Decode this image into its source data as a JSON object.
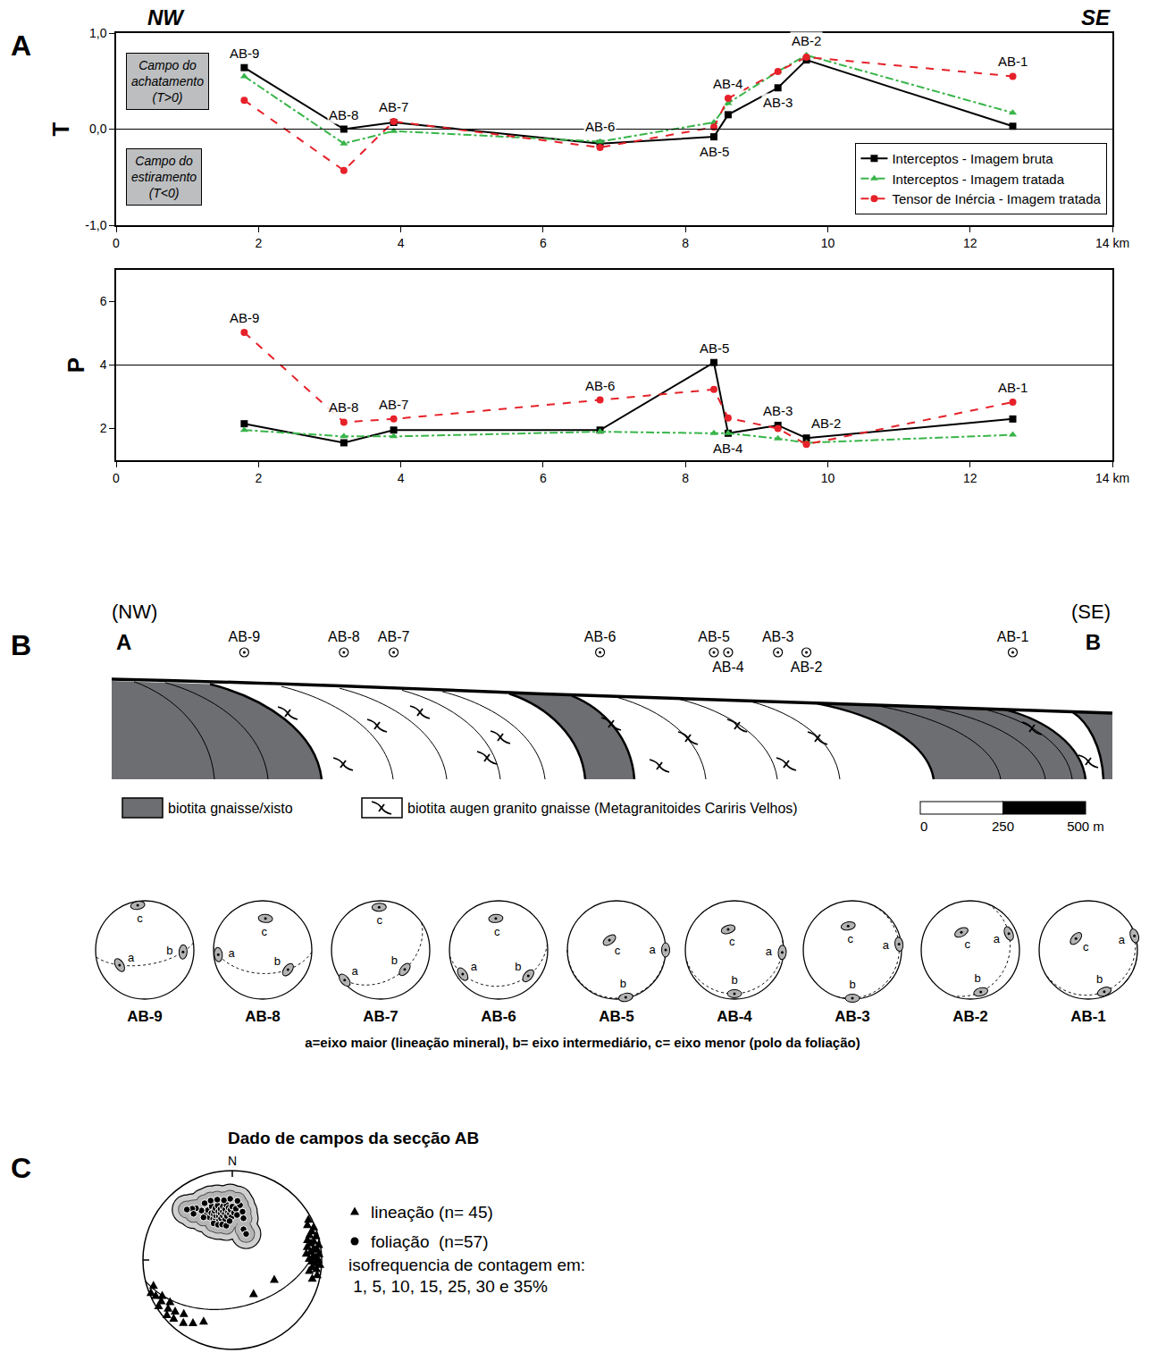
{
  "panel_labels": [
    "A",
    "B",
    "C"
  ],
  "chart_data": [
    {
      "type": "line",
      "y_label": "T",
      "direction_labels": [
        "NW",
        "SE"
      ],
      "x": [
        1.8,
        3.2,
        3.9,
        6.8,
        8.4,
        8.6,
        9.3,
        9.7,
        12.6
      ],
      "labels": [
        "AB-9",
        "AB-8",
        "AB-7",
        "AB-6",
        "AB-5",
        "AB-4",
        "AB-3",
        "AB-2",
        "AB-1"
      ],
      "xlim": [
        0,
        14
      ],
      "xticks": [
        0,
        2,
        4,
        6,
        8,
        10,
        12,
        {
          "value": 14,
          "label": "14 km"
        }
      ],
      "ylim": [
        -1,
        1
      ],
      "yticks": [
        {
          "value": -1,
          "label": "-1,0"
        },
        {
          "value": 0,
          "label": "0,0"
        },
        {
          "value": 1,
          "label": "1,0"
        }
      ],
      "hline": 0,
      "fields": {
        "positive": [
          "Campo do",
          "achatamento",
          "(T>0)"
        ],
        "negative": [
          "Campo do",
          "estiramento",
          "(T<0)"
        ]
      },
      "grid": false,
      "legend": "bottom right",
      "series": [
        {
          "name": "Interceptos - Imagem bruta",
          "color": "#000000",
          "marker": "square",
          "line_style": "solid",
          "values": [
            0.64,
            0.0,
            0.07,
            -0.15,
            -0.08,
            0.15,
            0.43,
            0.72,
            0.03
          ]
        },
        {
          "name": "Interceptos - Imagem tratada",
          "color": "#39b54a",
          "marker": "triangle-up",
          "line_style": "dashdot",
          "values": [
            0.55,
            -0.15,
            -0.02,
            -0.13,
            0.07,
            0.27,
            0.6,
            0.77,
            0.17
          ]
        },
        {
          "name": "Tensor de Inércia - Imagem tratada",
          "color": "#e62129",
          "marker": "circle",
          "line_style": "dash",
          "values": [
            0.3,
            -0.43,
            0.08,
            -0.19,
            0.02,
            0.32,
            0.6,
            0.75,
            0.55
          ]
        }
      ]
    },
    {
      "type": "line",
      "y_label": "P",
      "x": [
        1.8,
        3.2,
        3.9,
        6.8,
        8.4,
        8.6,
        9.3,
        9.7,
        12.6
      ],
      "labels": [
        "AB-9",
        "AB-8",
        "AB-7",
        "AB-6",
        "AB-5",
        "AB-4",
        "AB-3",
        "AB-2",
        "AB-1"
      ],
      "xlim": [
        0,
        14
      ],
      "xticks": [
        0,
        2,
        4,
        6,
        8,
        10,
        12,
        {
          "value": 14,
          "label": "14 km"
        }
      ],
      "ylim": [
        1,
        7
      ],
      "yticks": [
        2,
        4,
        6
      ],
      "hline": 4,
      "grid": false,
      "series": [
        {
          "name": "Interceptos - Imagem bruta",
          "color": "#000000",
          "marker": "square",
          "line_style": "solid",
          "values": [
            2.15,
            1.55,
            1.95,
            1.95,
            4.08,
            1.85,
            2.1,
            1.7,
            2.3
          ]
        },
        {
          "name": "Interceptos - Imagem tratada",
          "color": "#39b54a",
          "marker": "triangle-up",
          "line_style": "dashdot",
          "values": [
            1.95,
            1.75,
            1.75,
            1.9,
            1.85,
            1.85,
            1.68,
            1.55,
            1.8
          ]
        },
        {
          "name": "Tensor de Inércia - Imagem tratada",
          "color": "#e62129",
          "marker": "circle",
          "line_style": "dash",
          "values": [
            5.03,
            2.2,
            2.3,
            2.9,
            3.23,
            2.33,
            2.0,
            1.5,
            2.83
          ]
        }
      ]
    }
  ],
  "cross_section": {
    "directions": [
      "(NW)",
      "(SE)"
    ],
    "ends": [
      "A",
      "B"
    ],
    "samples": {
      "labels": [
        "AB-9",
        "AB-8",
        "AB-7",
        "AB-6",
        "AB-5",
        "AB-4",
        "AB-3",
        "AB-2",
        "AB-1"
      ],
      "x": [
        1.8,
        3.2,
        3.9,
        6.8,
        8.4,
        8.6,
        9.3,
        9.7,
        12.6
      ]
    },
    "units": [
      "biotita gnaisse/xisto",
      "biotita augen granito gnaisse (Metagranitoides Cariris Velhos)"
    ],
    "scale": {
      "ticks": [
        0,
        250,
        {
          "value": 500,
          "label": "500 m"
        }
      ]
    }
  },
  "stereonets": {
    "nets": [
      {
        "label": "AB-9",
        "axes": [
          {
            "name": "a",
            "trend": 239,
            "plunge": 40
          },
          {
            "name": "b",
            "trend": 93,
            "plunge": 23
          },
          {
            "name": "c",
            "trend": 351,
            "plunge": 9
          }
        ]
      },
      {
        "label": "AB-8",
        "axes": [
          {
            "name": "a",
            "trend": 264,
            "plunge": 10
          },
          {
            "name": "b",
            "trend": 128,
            "plunge": 35
          },
          {
            "name": "c",
            "trend": 5,
            "plunge": 36
          }
        ]
      },
      {
        "label": "AB-7",
        "axes": [
          {
            "name": "a",
            "trend": 230,
            "plunge": 5
          },
          {
            "name": "b",
            "trend": 129,
            "plunge": 37
          },
          {
            "name": "c",
            "trend": 358,
            "plunge": 14
          }
        ]
      },
      {
        "label": "AB-6",
        "axes": [
          {
            "name": "a",
            "trend": 236,
            "plunge": 13
          },
          {
            "name": "b",
            "trend": 131,
            "plunge": 21
          },
          {
            "name": "c",
            "trend": 355,
            "plunge": 36
          }
        ]
      },
      {
        "label": "AB-5",
        "axes": [
          {
            "name": "a",
            "trend": 90,
            "plunge": 0
          },
          {
            "name": "b",
            "trend": 169,
            "plunge": 2
          },
          {
            "name": "c",
            "trend": 324,
            "plunge": 70
          }
        ]
      },
      {
        "label": "AB-4",
        "axes": [
          {
            "name": "a",
            "trend": 93,
            "plunge": 3
          },
          {
            "name": "b",
            "trend": 180,
            "plunge": 12
          },
          {
            "name": "c",
            "trend": 343,
            "plunge": 54
          }
        ]
      },
      {
        "label": "AB-3",
        "axes": [
          {
            "name": "a",
            "trend": 83,
            "plunge": 5
          },
          {
            "name": "b",
            "trend": 180,
            "plunge": 2
          },
          {
            "name": "c",
            "trend": 350,
            "plunge": 49
          }
        ]
      },
      {
        "label": "AB-2",
        "axes": [
          {
            "name": "a",
            "trend": 67,
            "plunge": 16
          },
          {
            "name": "b",
            "trend": 166,
            "plunge": 13
          },
          {
            "name": "c",
            "trend": 333,
            "plunge": 57
          }
        ]
      },
      {
        "label": "AB-1",
        "axes": [
          {
            "name": "a",
            "trend": 73,
            "plunge": 2
          },
          {
            "name": "b",
            "trend": 159,
            "plunge": 10
          },
          {
            "name": "c",
            "trend": 313,
            "plunge": 62
          }
        ]
      }
    ],
    "caption": "a=eixo maior (lineação mineral), b= eixo intermediário, c= eixo menor (polo da foliação)"
  },
  "field_stereonet": {
    "title": "Dado de campos da secção AB",
    "north": "N",
    "lineation": {
      "label": "lineação (n= 45)",
      "points": [
        [
          62,
          4
        ],
        [
          65,
          8
        ],
        [
          68,
          2
        ],
        [
          70,
          6
        ],
        [
          72,
          10
        ],
        [
          74,
          3
        ],
        [
          75,
          14
        ],
        [
          77,
          7
        ],
        [
          78,
          11
        ],
        [
          80,
          2
        ],
        [
          80,
          16
        ],
        [
          82,
          9
        ],
        [
          83,
          5
        ],
        [
          84,
          13
        ],
        [
          85,
          18
        ],
        [
          86,
          3
        ],
        [
          87,
          10
        ],
        [
          88,
          7
        ],
        [
          89,
          15
        ],
        [
          90,
          4
        ],
        [
          91,
          12
        ],
        [
          92,
          8
        ],
        [
          93,
          2
        ],
        [
          95,
          11
        ],
        [
          96,
          6
        ],
        [
          98,
          14
        ],
        [
          100,
          4
        ],
        [
          103,
          9
        ],
        [
          115,
          47
        ],
        [
          148,
          53
        ],
        [
          205,
          25
        ],
        [
          212,
          18
        ],
        [
          218,
          12
        ],
        [
          222,
          20
        ],
        [
          225,
          8
        ],
        [
          228,
          15
        ],
        [
          230,
          5
        ],
        [
          233,
          11
        ],
        [
          236,
          17
        ],
        [
          238,
          3
        ],
        [
          240,
          9
        ],
        [
          243,
          13
        ],
        [
          245,
          6
        ],
        [
          248,
          2
        ],
        [
          252,
          8
        ]
      ]
    },
    "foliation": {
      "label": "foliação  (n=57)",
      "points": [
        [
          330,
          40
        ],
        [
          332,
          45
        ],
        [
          334,
          38
        ],
        [
          335,
          48
        ],
        [
          336,
          42
        ],
        [
          337,
          50
        ],
        [
          338,
          44
        ],
        [
          339,
          36
        ],
        [
          340,
          46
        ],
        [
          340,
          41
        ],
        [
          341,
          52
        ],
        [
          342,
          39
        ],
        [
          343,
          47
        ],
        [
          344,
          43
        ],
        [
          345,
          50
        ],
        [
          345,
          37
        ],
        [
          346,
          45
        ],
        [
          347,
          41
        ],
        [
          348,
          48
        ],
        [
          349,
          44
        ],
        [
          350,
          39
        ],
        [
          350,
          52
        ],
        [
          351,
          46
        ],
        [
          352,
          42
        ],
        [
          353,
          49
        ],
        [
          354,
          38
        ],
        [
          355,
          45
        ],
        [
          356,
          41
        ],
        [
          357,
          47
        ],
        [
          358,
          43
        ],
        [
          359,
          50
        ],
        [
          0,
          40
        ],
        [
          2,
          46
        ],
        [
          4,
          42
        ],
        [
          6,
          48
        ],
        [
          328,
          35
        ],
        [
          325,
          30
        ],
        [
          322,
          28
        ],
        [
          318,
          25
        ],
        [
          320,
          33
        ],
        [
          326,
          42
        ],
        [
          333,
          52
        ],
        [
          338,
          55
        ],
        [
          344,
          56
        ],
        [
          350,
          58
        ],
        [
          356,
          54
        ],
        [
          8,
          38
        ],
        [
          12,
          44
        ],
        [
          5,
          34
        ],
        [
          358,
          32
        ],
        [
          352,
          33
        ],
        [
          346,
          31
        ],
        [
          340,
          30
        ],
        [
          334,
          30
        ],
        [
          15,
          50
        ],
        [
          20,
          60
        ],
        [
          28,
          63
        ]
      ]
    },
    "contour_note": [
      "isofrequencia de contagem em:",
      " 1, 5, 10, 15, 25, 30 e 35%"
    ]
  }
}
